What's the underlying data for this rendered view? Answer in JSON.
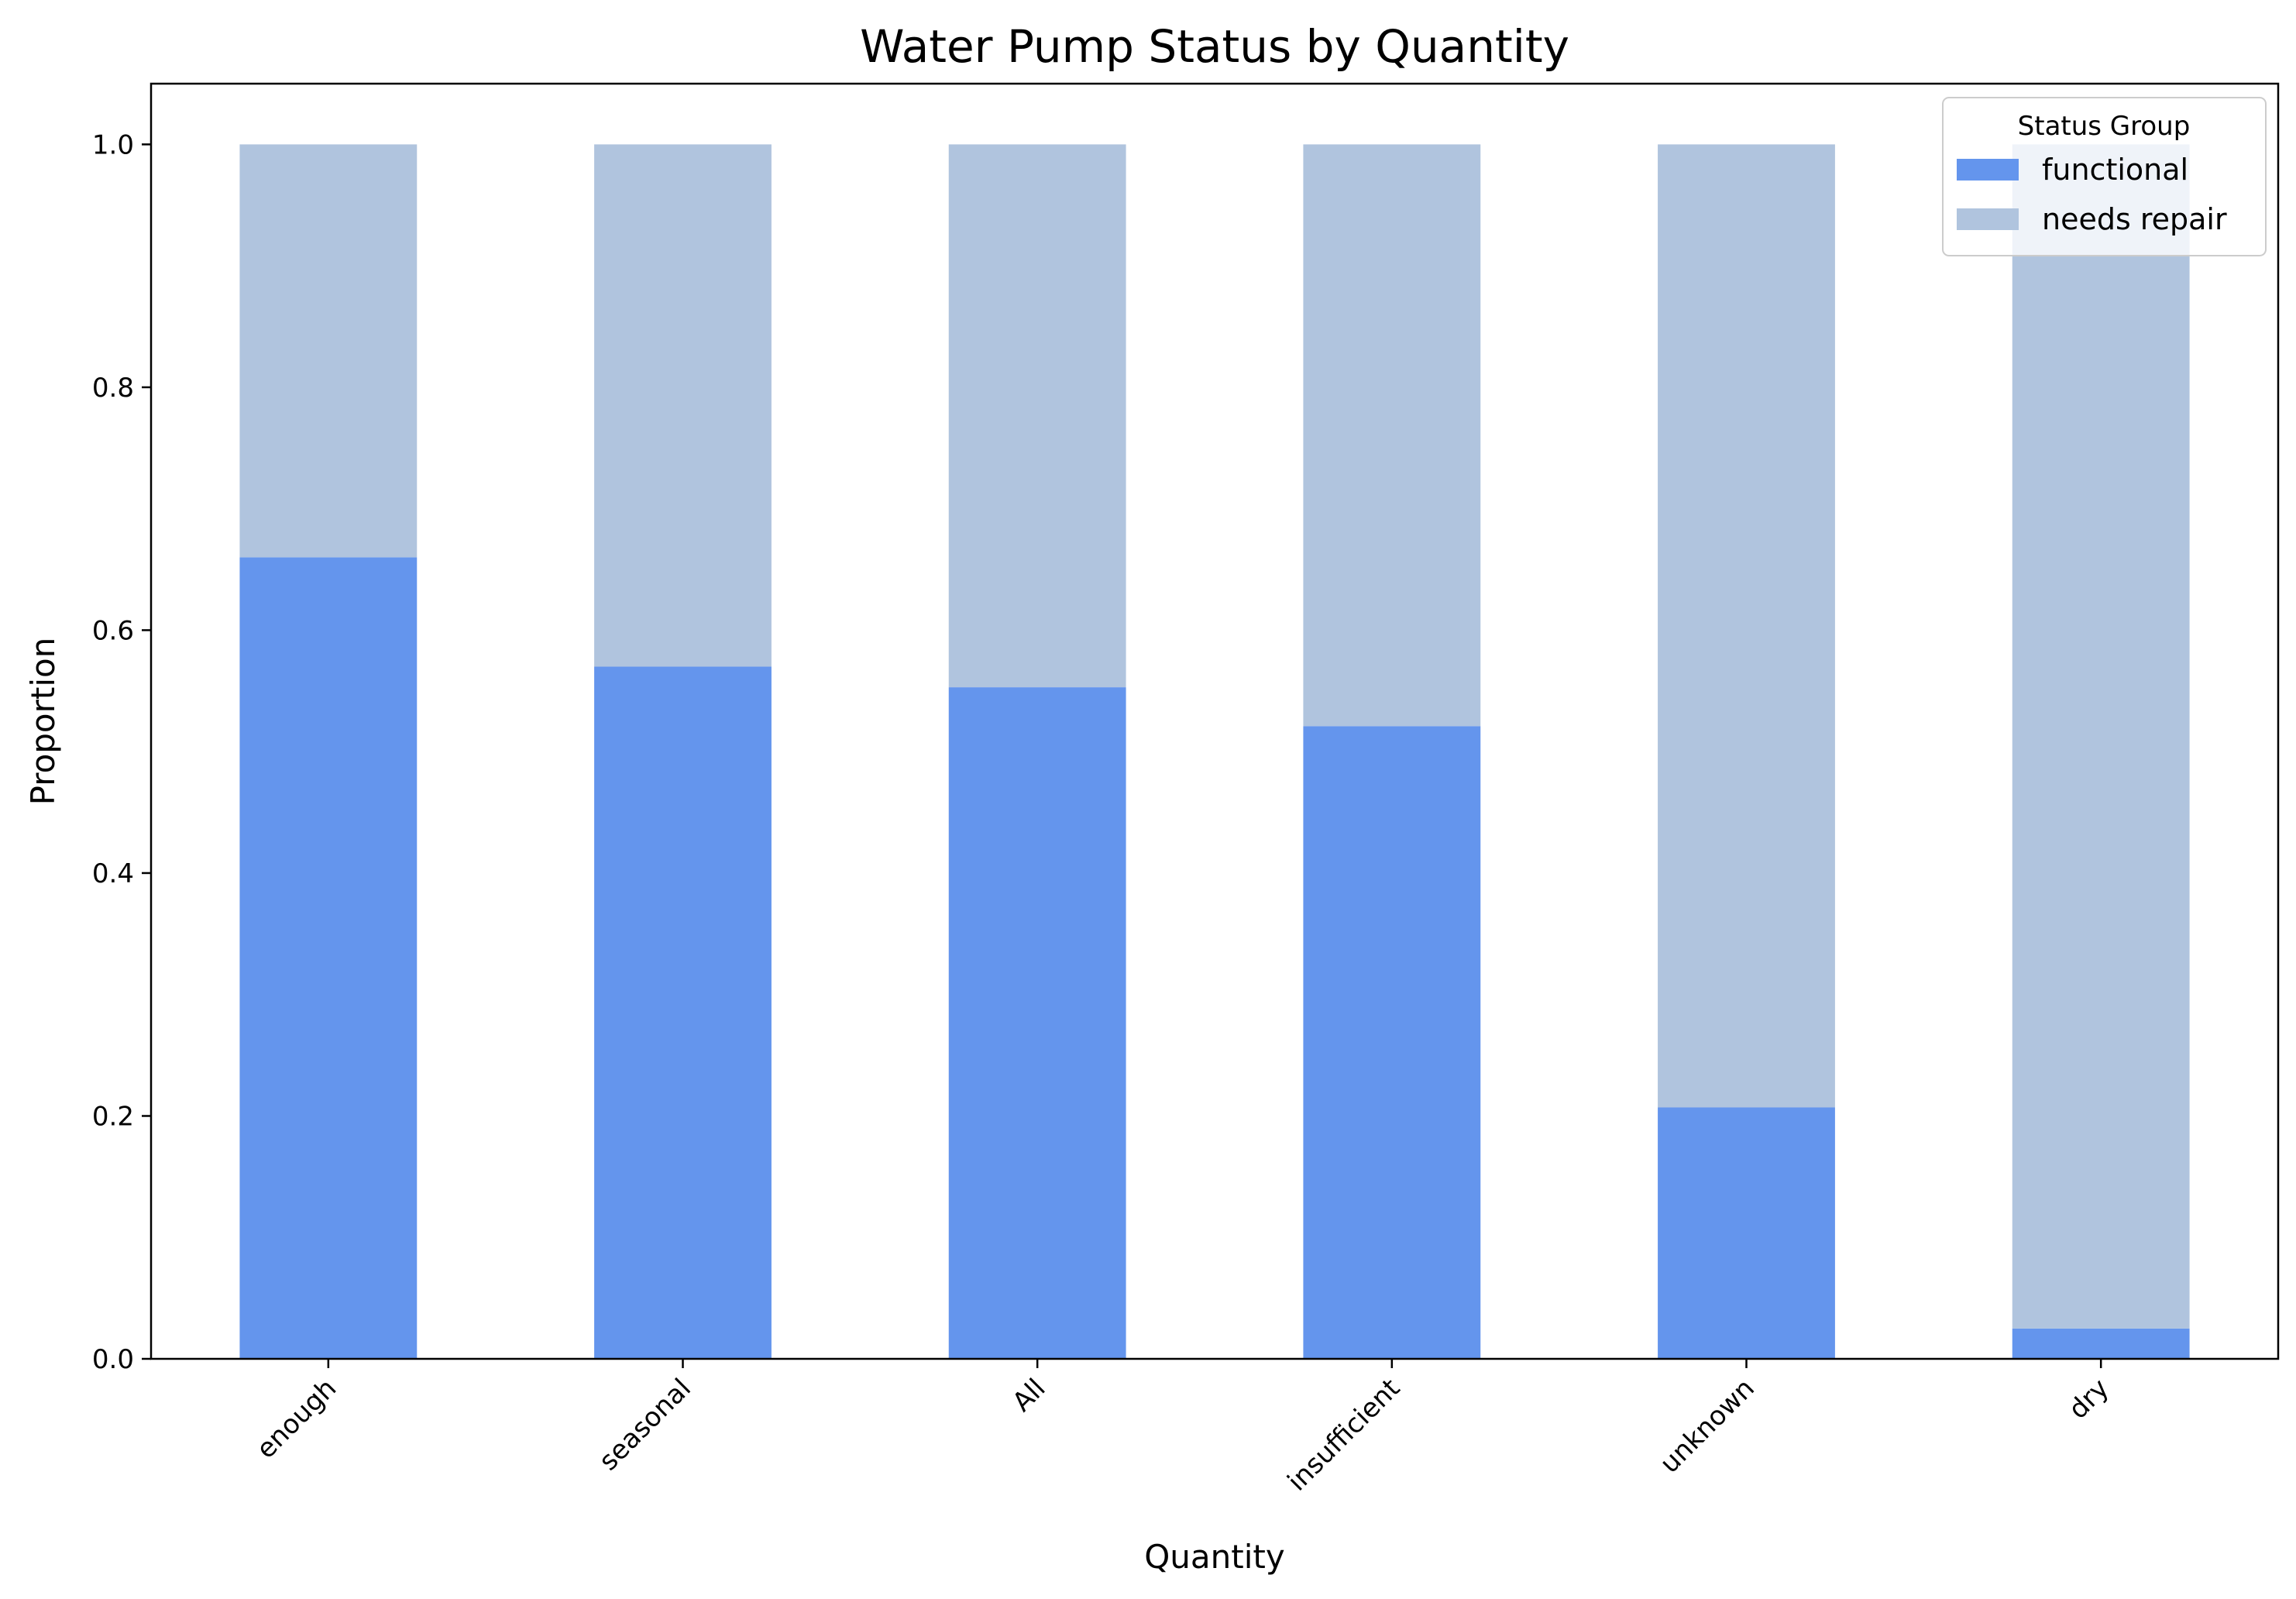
{
  "chart_data": {
    "type": "bar",
    "stacked": true,
    "title": "Water Pump Status by Quantity",
    "xlabel": "Quantity",
    "ylabel": "Proportion",
    "categories": [
      "enough",
      "seasonal",
      "All",
      "insufficient",
      "unknown",
      "dry"
    ],
    "series": [
      {
        "name": "functional",
        "color": "#6495ED",
        "values": [
          0.66,
          0.57,
          0.553,
          0.521,
          0.207,
          0.025
        ]
      },
      {
        "name": "needs repair",
        "color": "#B0C4DE",
        "values": [
          0.34,
          0.43,
          0.447,
          0.479,
          0.793,
          0.975
        ]
      }
    ],
    "ylim": [
      0,
      1.05
    ],
    "yticks": [
      0.0,
      0.2,
      0.4,
      0.6,
      0.8,
      1.0
    ],
    "ytick_labels": [
      "0.0",
      "0.2",
      "0.4",
      "0.6",
      "0.8",
      "1.0"
    ],
    "grid": false,
    "legend": {
      "title": "Status Group",
      "position": "top-right"
    }
  }
}
